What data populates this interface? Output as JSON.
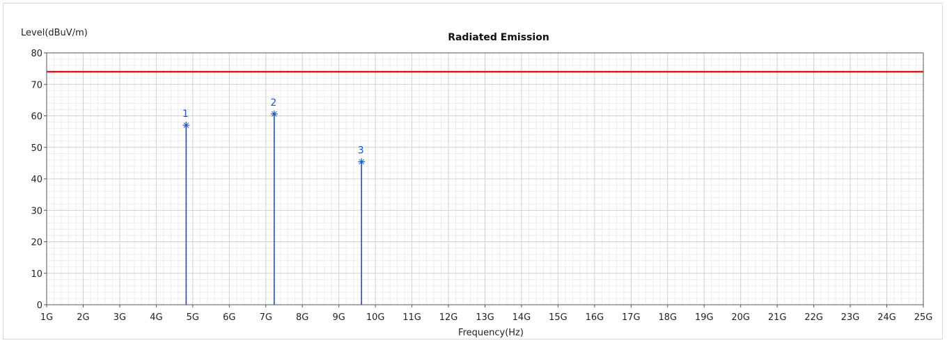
{
  "chart_data": {
    "type": "line",
    "title": "Radiated Emission",
    "ylabel": "Level(dBuV/m)",
    "xlabel": "Frequency(Hz)",
    "xlim": [
      1,
      25
    ],
    "ylim": [
      0,
      80
    ],
    "x_unit": "GHz",
    "x_ticks": [
      {
        "value": 1,
        "label": "1G"
      },
      {
        "value": 2,
        "label": "2G"
      },
      {
        "value": 3,
        "label": "3G"
      },
      {
        "value": 4,
        "label": "4G"
      },
      {
        "value": 5,
        "label": "5G"
      },
      {
        "value": 6,
        "label": "6G"
      },
      {
        "value": 7,
        "label": "7G"
      },
      {
        "value": 8,
        "label": "8G"
      },
      {
        "value": 9,
        "label": "9G"
      },
      {
        "value": 10,
        "label": "10G"
      },
      {
        "value": 11,
        "label": "11G"
      },
      {
        "value": 12,
        "label": "12G"
      },
      {
        "value": 13,
        "label": "13G"
      },
      {
        "value": 14,
        "label": "14G"
      },
      {
        "value": 15,
        "label": "15G"
      },
      {
        "value": 16,
        "label": "16G"
      },
      {
        "value": 17,
        "label": "17G"
      },
      {
        "value": 18,
        "label": "18G"
      },
      {
        "value": 19,
        "label": "19G"
      },
      {
        "value": 20,
        "label": "20G"
      },
      {
        "value": 21,
        "label": "21G"
      },
      {
        "value": 22,
        "label": "22G"
      },
      {
        "value": 23,
        "label": "23G"
      },
      {
        "value": 24,
        "label": "24G"
      },
      {
        "value": 25,
        "label": "25G"
      }
    ],
    "y_ticks": [
      {
        "value": 0,
        "label": "0"
      },
      {
        "value": 10,
        "label": "10"
      },
      {
        "value": 20,
        "label": "20"
      },
      {
        "value": 30,
        "label": "30"
      },
      {
        "value": 40,
        "label": "40"
      },
      {
        "value": 50,
        "label": "50"
      },
      {
        "value": 60,
        "label": "60"
      },
      {
        "value": 70,
        "label": "70"
      },
      {
        "value": 80,
        "label": "80"
      }
    ],
    "grid": true,
    "minor_grid_divisions": {
      "x": 5,
      "y": 5
    },
    "limit_line": {
      "value": 74,
      "color": "#cc2222"
    },
    "markers": [
      {
        "label": "1",
        "x": 4.82,
        "y": 57.0
      },
      {
        "label": "2",
        "x": 7.23,
        "y": 60.6
      },
      {
        "label": "3",
        "x": 9.62,
        "y": 45.4
      }
    ],
    "colors": {
      "marker": "#1a56c4",
      "grid_major": "#cfcfcf",
      "grid_minor": "#ececec",
      "axis": "#555555",
      "limit": "#cc2222"
    }
  }
}
